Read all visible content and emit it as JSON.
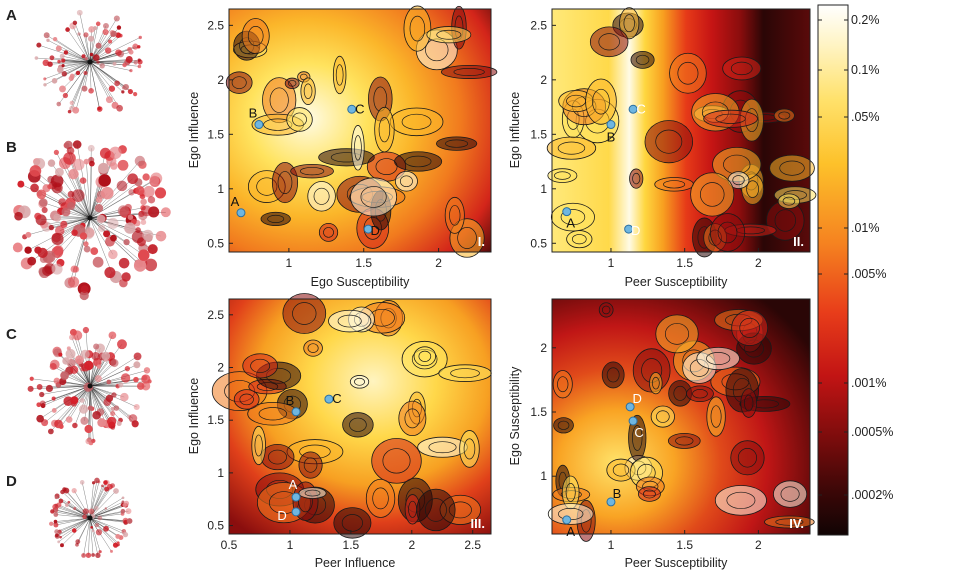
{
  "network_panels": [
    {
      "letter": "A"
    },
    {
      "letter": "B"
    },
    {
      "letter": "C"
    },
    {
      "letter": "D"
    }
  ],
  "plots": [
    {
      "id": "I.",
      "xlabel": "Ego Susceptibility",
      "ylabel": "Ego Influence",
      "xticks": [
        "1",
        "1.5",
        "2"
      ],
      "yticks": [
        "0.5",
        "1",
        "1.5",
        "2",
        "2.5"
      ],
      "points": [
        {
          "label": "A",
          "x": 0.68,
          "y": 0.78
        },
        {
          "label": "B",
          "x": 0.8,
          "y": 1.59
        },
        {
          "label": "C",
          "x": 1.42,
          "y": 1.73
        },
        {
          "label": "D",
          "x": 1.53,
          "y": 0.63
        }
      ]
    },
    {
      "id": "II.",
      "xlabel": "Peer Susceptibility",
      "ylabel": "Ego Influence",
      "xticks": [
        "1",
        "1.5",
        "2"
      ],
      "yticks": [
        "0.5",
        "1",
        "1.5",
        "2",
        "2.5"
      ],
      "points": [
        {
          "label": "A",
          "x": 0.7,
          "y": 0.79
        },
        {
          "label": "B",
          "x": 1.0,
          "y": 1.59
        },
        {
          "label": "C",
          "x": 1.15,
          "y": 1.73
        },
        {
          "label": "D",
          "x": 1.12,
          "y": 0.63
        }
      ]
    },
    {
      "id": "III.",
      "xlabel": "Peer Influence",
      "ylabel": "Ego Influence",
      "xticks": [
        "0.5",
        "1",
        "1.5",
        "2",
        "2.5"
      ],
      "yticks": [
        "0.5",
        "1",
        "1.5",
        "2",
        "2.5"
      ],
      "points": [
        {
          "label": "A",
          "x": 1.05,
          "y": 0.77
        },
        {
          "label": "B",
          "x": 1.05,
          "y": 1.58
        },
        {
          "label": "C",
          "x": 1.32,
          "y": 1.7
        },
        {
          "label": "D",
          "x": 1.05,
          "y": 0.63
        }
      ]
    },
    {
      "id": "IV.",
      "xlabel": "Peer Susceptibility",
      "ylabel": "Ego Susceptibility",
      "xticks": [
        "1",
        "1.5",
        "2"
      ],
      "yticks": [
        "1",
        "1.5",
        "2"
      ],
      "points": [
        {
          "label": "A",
          "x": 0.7,
          "y": 0.66
        },
        {
          "label": "B",
          "x": 1.0,
          "y": 0.8
        },
        {
          "label": "C",
          "x": 1.15,
          "y": 1.43
        },
        {
          "label": "D",
          "x": 1.13,
          "y": 1.54
        }
      ]
    }
  ],
  "colorbar": {
    "ticks": [
      "0.2%",
      "0.1%",
      ".05%",
      ".01%",
      ".005%",
      ".001%",
      ".0005%",
      ".0002%"
    ]
  },
  "colors": {
    "point_fill": "#6fb6e0",
    "point_stroke": "#2b6fa0"
  }
}
